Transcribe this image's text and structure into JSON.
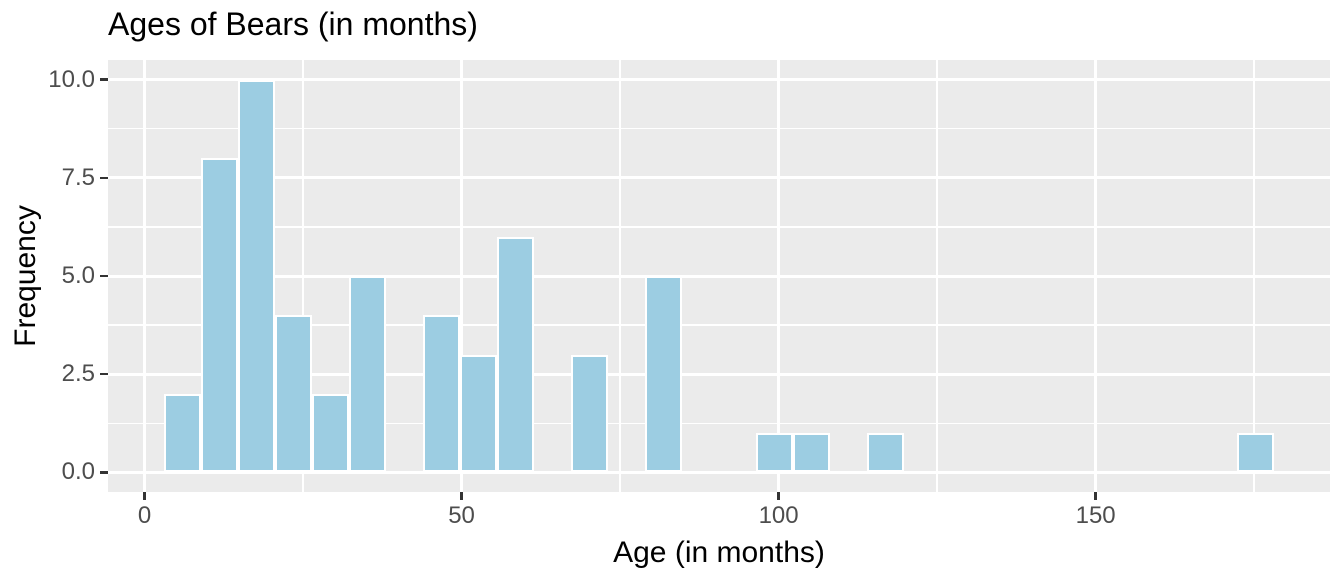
{
  "title": "Ages of Bears (in months)",
  "x_axis": {
    "label": "Age (in months)",
    "tick_labels": [
      "0",
      "50",
      "100",
      "150"
    ]
  },
  "y_axis": {
    "label": "Frequency",
    "tick_labels": [
      "0.0",
      "2.5",
      "5.0",
      "7.5",
      "10.0"
    ]
  },
  "chart_data": {
    "type": "bar",
    "subtype": "histogram",
    "title": "Ages of Bears (in months)",
    "xlabel": "Age (in months)",
    "ylabel": "Frequency",
    "bin_start": 3.0,
    "bin_width": 5.84,
    "bin_counts": [
      2,
      8,
      10,
      4,
      2,
      5,
      0,
      4,
      3,
      6,
      0,
      3,
      0,
      5,
      0,
      0,
      1,
      1,
      0,
      1,
      0,
      0,
      0,
      0,
      0,
      0,
      0,
      0,
      0,
      1
    ],
    "total_observations": 56,
    "x_breaks": [
      0,
      50,
      100,
      150
    ],
    "x_minor_breaks": [
      25,
      75,
      125,
      175
    ],
    "y_breaks": [
      0,
      2.5,
      5,
      7.5,
      10
    ],
    "y_minor_breaks": [
      1.25,
      3.75,
      6.25,
      8.75
    ],
    "xlim": [
      -5.76,
      186.96
    ],
    "ylim": [
      -0.5,
      10.5
    ],
    "grid": true,
    "legend": "none",
    "colors": {
      "bar_fill": "#9CCDE2",
      "bar_border": "#FFFFFF",
      "panel_background": "#EBEBEB",
      "gridline": "#FFFFFF",
      "tick_mark": "#333333",
      "tick_label": "#4D4D4D",
      "title_text": "#000000"
    }
  }
}
